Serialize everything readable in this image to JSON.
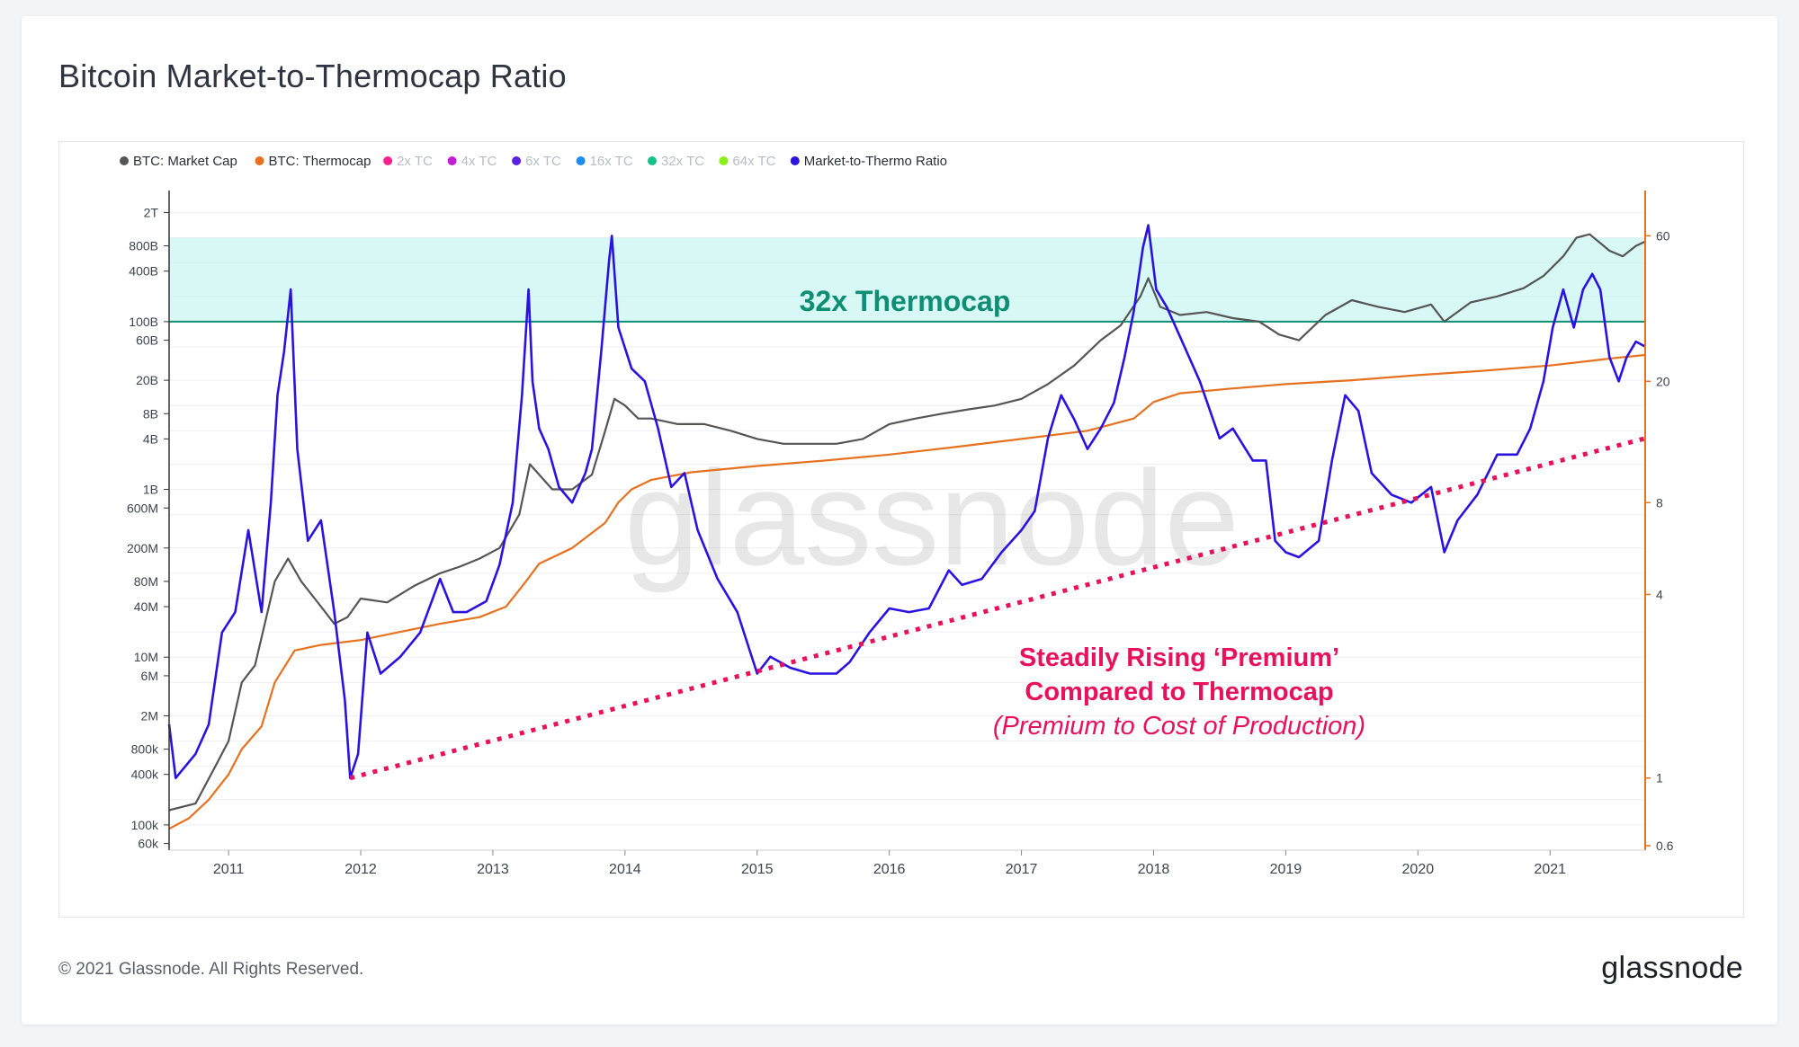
{
  "title": "Bitcoin Market-to-Thermocap Ratio",
  "footer": {
    "copyright": "© 2021 Glassnode. All Rights Reserved.",
    "logo": "glassnode"
  },
  "watermark": "glassnode",
  "colors": {
    "market_cap": "#555555",
    "thermocap": "#e6711f",
    "ratio": "#2a12e0",
    "band_fill": "#c9f6f0",
    "band_line": "#0e8e72",
    "trend": "#e8125c",
    "right_axis": "#e6711f"
  },
  "chart_data": {
    "type": "line",
    "title": "Bitcoin Market-to-Thermocap Ratio",
    "legend": [
      {
        "label": "BTC: Market Cap",
        "color": "#555555",
        "active": true
      },
      {
        "label": "BTC: Thermocap",
        "color": "#e6711f",
        "active": true
      },
      {
        "label": "2x TC",
        "color": "#ff1f8e",
        "active": false
      },
      {
        "label": "4x TC",
        "color": "#c21fd6",
        "active": false
      },
      {
        "label": "6x TC",
        "color": "#5b1fe0",
        "active": false
      },
      {
        "label": "16x TC",
        "color": "#1b8cf0",
        "active": false
      },
      {
        "label": "32x TC",
        "color": "#17c18a",
        "active": false
      },
      {
        "label": "64x TC",
        "color": "#8af01b",
        "active": false
      },
      {
        "label": "Market-to-Thermo Ratio",
        "color": "#2a12e0",
        "active": true
      }
    ],
    "legend_position": "top-left",
    "x_ticks": [
      "2011",
      "2012",
      "2013",
      "2014",
      "2015",
      "2016",
      "2017",
      "2018",
      "2019",
      "2020",
      "2021"
    ],
    "x_range": [
      2010.55,
      2021.72
    ],
    "left_axis": {
      "scale": "log",
      "range": [
        50000,
        3000000000000
      ],
      "tick_labels": [
        "2T",
        "800B",
        "400B",
        "100B",
        "60B",
        "20B",
        "8B",
        "4B",
        "1B",
        "600M",
        "200M",
        "80M",
        "40M",
        "10M",
        "6M",
        "2M",
        "800k",
        "400k",
        "100k",
        "60k"
      ],
      "tick_values": [
        2000000000000.0,
        800000000000.0,
        400000000000.0,
        100000000000.0,
        60000000000.0,
        20000000000.0,
        8000000000.0,
        4000000000.0,
        1000000000.0,
        600000000.0,
        200000000.0,
        80000000.0,
        40000000.0,
        10000000.0,
        6000000.0,
        2000000.0,
        800000.0,
        400000.0,
        100000.0,
        60000.0
      ]
    },
    "right_axis": {
      "scale": "log",
      "range": [
        0.58,
        80
      ],
      "tick_labels": [
        "60",
        "20",
        "8",
        "4",
        "1",
        "0.6"
      ],
      "tick_values": [
        60,
        20,
        8,
        4,
        1,
        0.6
      ]
    },
    "grid": true,
    "series": [
      {
        "name": "BTC: Market Cap",
        "axis": "left",
        "x": [
          2010.55,
          2010.75,
          2010.9,
          2011.0,
          2011.1,
          2011.2,
          2011.35,
          2011.45,
          2011.55,
          2011.7,
          2011.8,
          2011.9,
          2012.0,
          2012.2,
          2012.4,
          2012.6,
          2012.75,
          2012.9,
          2013.05,
          2013.2,
          2013.28,
          2013.35,
          2013.45,
          2013.6,
          2013.75,
          2013.85,
          2013.92,
          2014.0,
          2014.1,
          2014.2,
          2014.4,
          2014.6,
          2014.8,
          2015.0,
          2015.2,
          2015.4,
          2015.6,
          2015.8,
          2016.0,
          2016.2,
          2016.4,
          2016.6,
          2016.8,
          2017.0,
          2017.2,
          2017.4,
          2017.6,
          2017.75,
          2017.9,
          2017.96,
          2018.05,
          2018.2,
          2018.4,
          2018.6,
          2018.8,
          2018.95,
          2019.1,
          2019.3,
          2019.5,
          2019.7,
          2019.9,
          2020.1,
          2020.2,
          2020.4,
          2020.6,
          2020.8,
          2020.95,
          2021.1,
          2021.2,
          2021.3,
          2021.45,
          2021.55,
          2021.65,
          2021.72
        ],
        "values": [
          150000,
          180000,
          500000,
          1000000,
          5000000,
          8000000,
          80000000,
          150000000,
          80000000,
          40000000,
          25000000,
          30000000,
          50000000,
          45000000,
          70000000,
          100000000,
          120000000,
          150000000,
          200000000,
          500000000,
          2000000000,
          1500000000,
          1000000000,
          1000000000,
          1500000000,
          5000000000,
          12000000000,
          10000000000,
          7000000000,
          7000000000,
          6000000000,
          6000000000,
          5000000000,
          4000000000,
          3500000000,
          3500000000,
          3500000000,
          4000000000,
          6000000000,
          7000000000,
          8000000000,
          9000000000,
          10000000000,
          12000000000,
          18000000000,
          30000000000,
          60000000000,
          90000000000,
          200000000000,
          330000000000,
          150000000000,
          120000000000,
          130000000000,
          110000000000,
          100000000000,
          70000000000,
          60000000000,
          120000000000,
          180000000000,
          150000000000,
          130000000000,
          160000000000,
          100000000000,
          170000000000,
          200000000000,
          250000000000,
          350000000000,
          600000000000,
          1000000000000,
          1100000000000,
          700000000000,
          600000000000,
          800000000000,
          900000000000
        ]
      },
      {
        "name": "BTC: Thermocap",
        "axis": "left",
        "x": [
          2010.55,
          2010.7,
          2010.85,
          2011.0,
          2011.1,
          2011.25,
          2011.35,
          2011.5,
          2011.7,
          2012.0,
          2012.3,
          2012.6,
          2012.9,
          2013.1,
          2013.25,
          2013.35,
          2013.6,
          2013.85,
          2013.95,
          2014.05,
          2014.2,
          2014.5,
          2015.0,
          2015.5,
          2016.0,
          2016.5,
          2017.0,
          2017.5,
          2017.85,
          2018.0,
          2018.2,
          2018.6,
          2019.0,
          2019.5,
          2020.0,
          2020.5,
          2021.0,
          2021.3,
          2021.5,
          2021.72
        ],
        "values": [
          90000,
          120000,
          200000,
          400000,
          800000,
          1500000,
          5000000,
          12000000,
          14000000,
          16000000,
          20000000,
          25000000,
          30000000,
          40000000,
          80000000,
          130000000,
          200000000,
          400000000,
          700000000,
          1000000000,
          1300000000,
          1600000000,
          1900000000,
          2200000000,
          2600000000,
          3200000000,
          4000000000,
          5000000000,
          7000000000,
          11000000000,
          14000000000,
          16000000000,
          18000000000,
          20000000000,
          23000000000,
          26000000000,
          30000000000,
          34000000000,
          37000000000,
          40000000000
        ]
      },
      {
        "name": "Market-to-Thermo Ratio",
        "axis": "right",
        "x": [
          2010.55,
          2010.6,
          2010.75,
          2010.85,
          2010.95,
          2011.05,
          2011.15,
          2011.25,
          2011.32,
          2011.37,
          2011.42,
          2011.47,
          2011.52,
          2011.6,
          2011.7,
          2011.8,
          2011.88,
          2011.92,
          2011.98,
          2012.05,
          2012.15,
          2012.3,
          2012.45,
          2012.6,
          2012.7,
          2012.8,
          2012.95,
          2013.05,
          2013.15,
          2013.22,
          2013.27,
          2013.3,
          2013.35,
          2013.42,
          2013.5,
          2013.6,
          2013.7,
          2013.75,
          2013.82,
          2013.88,
          2013.9,
          2013.95,
          2014.05,
          2014.15,
          2014.25,
          2014.35,
          2014.45,
          2014.55,
          2014.7,
          2014.85,
          2015.0,
          2015.1,
          2015.25,
          2015.4,
          2015.6,
          2015.7,
          2015.85,
          2016.0,
          2016.15,
          2016.3,
          2016.45,
          2016.55,
          2016.7,
          2016.85,
          2017.0,
          2017.1,
          2017.2,
          2017.3,
          2017.4,
          2017.5,
          2017.6,
          2017.7,
          2017.78,
          2017.85,
          2017.92,
          2017.96,
          2018.02,
          2018.1,
          2018.2,
          2018.35,
          2018.5,
          2018.6,
          2018.75,
          2018.85,
          2018.92,
          2019.0,
          2019.1,
          2019.25,
          2019.35,
          2019.45,
          2019.55,
          2019.65,
          2019.8,
          2019.95,
          2020.1,
          2020.2,
          2020.3,
          2020.45,
          2020.6,
          2020.75,
          2020.85,
          2020.95,
          2021.02,
          2021.1,
          2021.18,
          2021.25,
          2021.32,
          2021.38,
          2021.45,
          2021.52,
          2021.58,
          2021.65,
          2021.72
        ],
        "values": [
          1.5,
          1.0,
          1.2,
          1.5,
          3.0,
          3.5,
          6.5,
          3.5,
          8.0,
          18.0,
          25.0,
          40.0,
          12.0,
          6.0,
          7.0,
          3.5,
          1.8,
          1.0,
          1.2,
          3.0,
          2.2,
          2.5,
          3.0,
          4.5,
          3.5,
          3.5,
          3.8,
          5.0,
          8.0,
          18.0,
          40.0,
          20.0,
          14.0,
          12.0,
          9.0,
          8.0,
          10.0,
          12.0,
          25.0,
          50.0,
          60.0,
          30.0,
          22.0,
          20.0,
          14.0,
          9.0,
          10.0,
          6.5,
          4.5,
          3.5,
          2.2,
          2.5,
          2.3,
          2.2,
          2.2,
          2.4,
          3.0,
          3.6,
          3.5,
          3.6,
          4.8,
          4.3,
          4.5,
          5.5,
          6.5,
          7.5,
          13.0,
          18.0,
          15.0,
          12.0,
          14.0,
          17.0,
          24.0,
          34.0,
          55.0,
          65.0,
          40.0,
          35.0,
          28.0,
          20.0,
          13.0,
          14.0,
          11.0,
          11.0,
          6.0,
          5.5,
          5.3,
          6.0,
          11.0,
          18.0,
          16.0,
          10.0,
          8.5,
          8.0,
          9.0,
          5.5,
          7.0,
          8.5,
          11.5,
          11.5,
          14.0,
          20.0,
          30.0,
          40.0,
          30.0,
          40.0,
          45.0,
          40.0,
          24.0,
          20.0,
          24.0,
          27.0,
          26.0
        ]
      }
    ],
    "band": {
      "label": "32x Thermocap",
      "lower": 100000000000,
      "upper": 1000000000000
    },
    "trend_line": {
      "x": [
        2011.92,
        2021.72
      ],
      "right_axis_values": [
        1.0,
        13.0
      ]
    },
    "annotations": {
      "band_label": "32x Thermocap",
      "premium_line1": "Steadily Rising ‘Premium’",
      "premium_line2": "Compared to Thermocap",
      "premium_line3": "(Premium to Cost of Production)"
    }
  }
}
